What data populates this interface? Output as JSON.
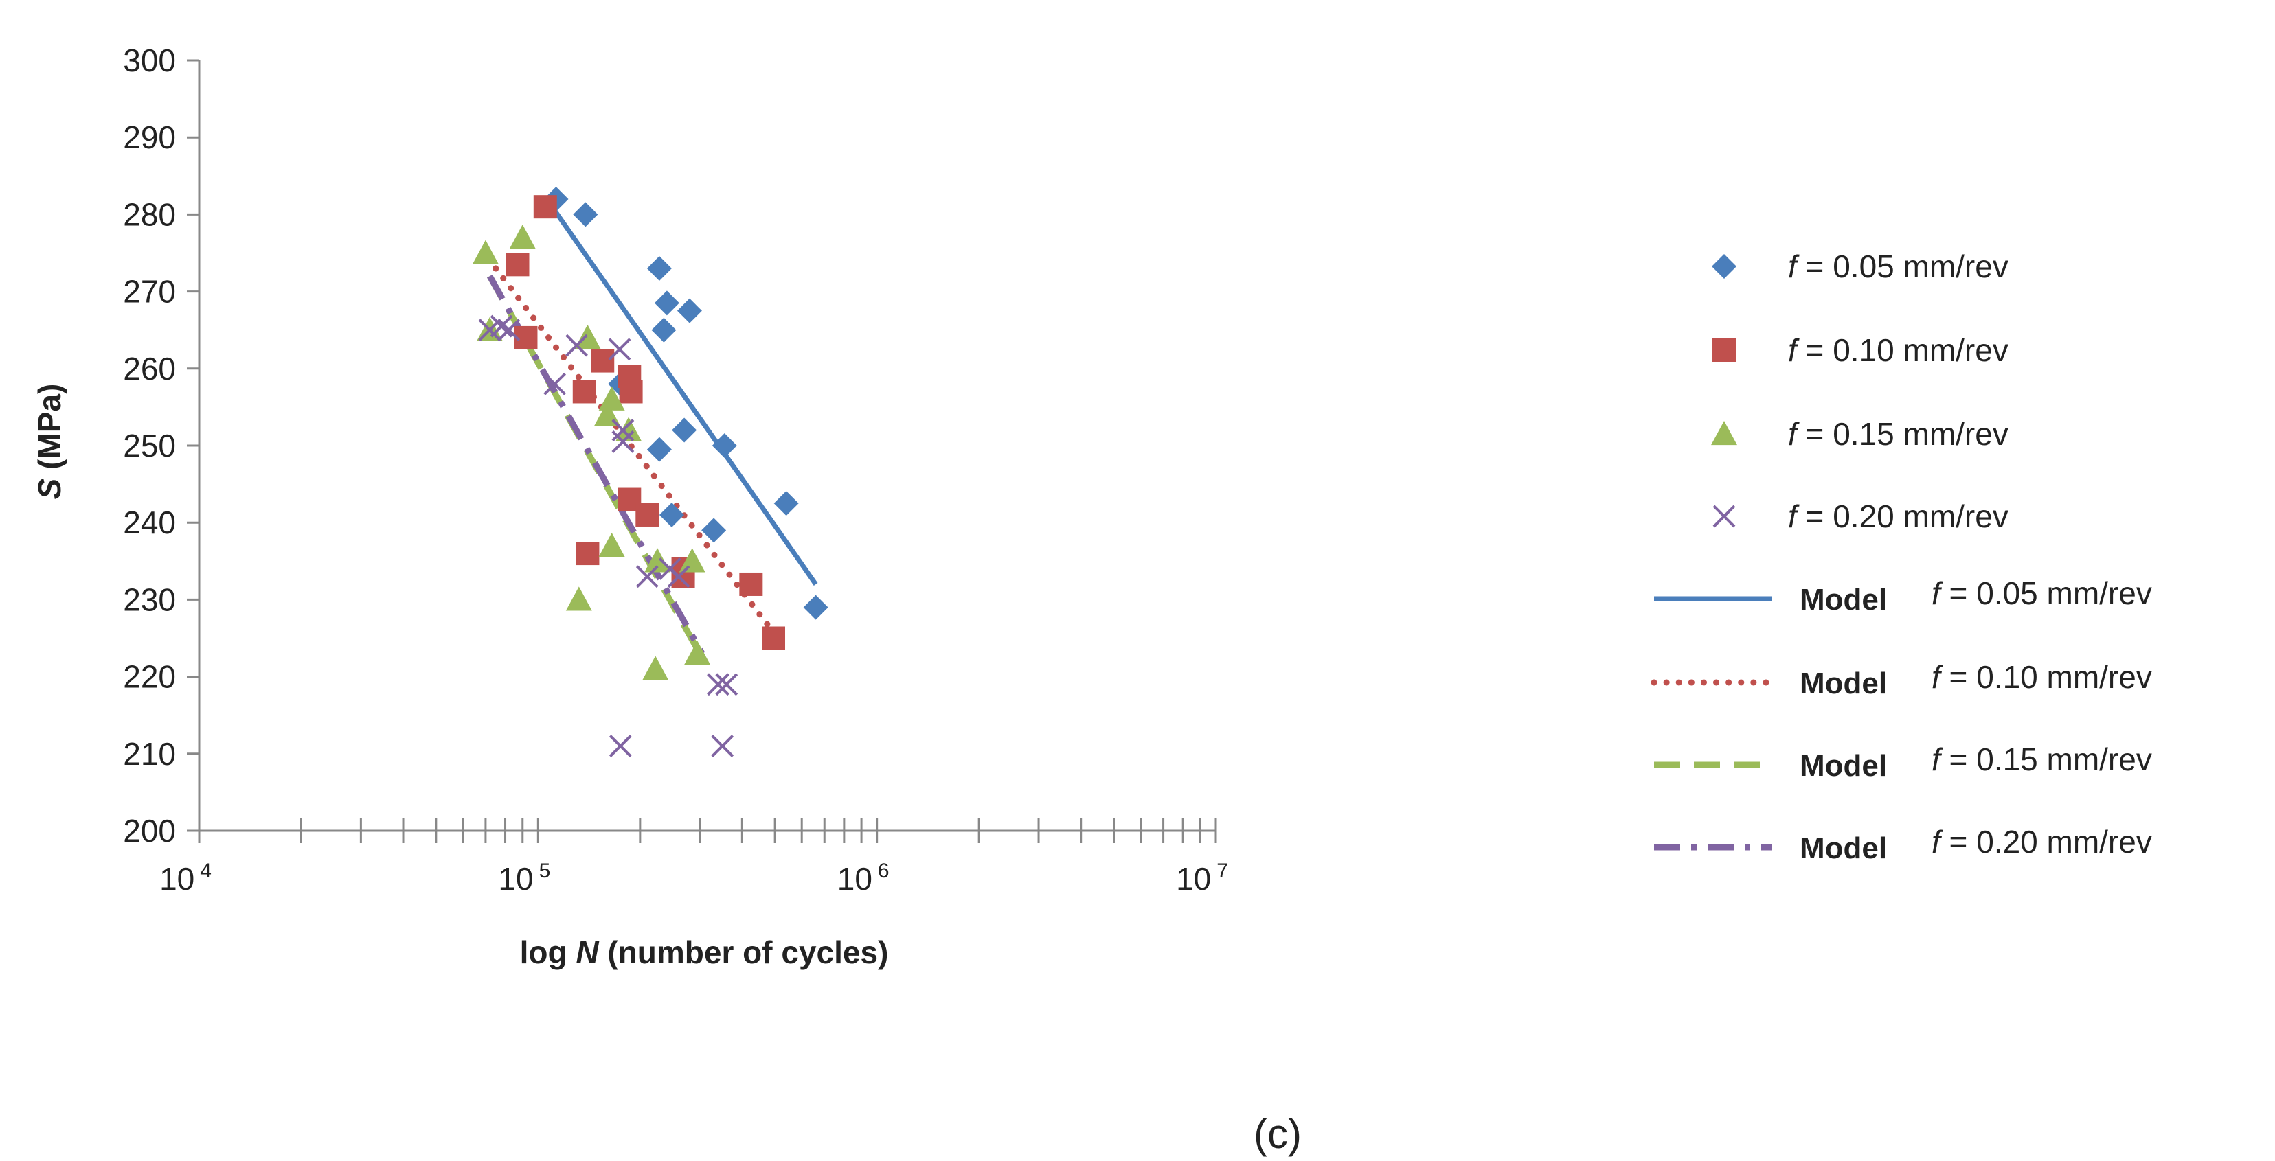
{
  "chart_data": {
    "type": "scatter",
    "panel_label": "(c)",
    "xlabel_prefix": "log ",
    "xlabel_var": "N",
    "xlabel_suffix": " (number of cycles)",
    "ylabel_var": "S",
    "ylabel_suffix": " (MPa)",
    "x_scale": "log",
    "xlim": [
      10000,
      10000000
    ],
    "ylim": [
      200,
      300
    ],
    "x_ticks": [
      {
        "base": "10",
        "exp": "4",
        "value": 10000
      },
      {
        "base": "10",
        "exp": "5",
        "value": 100000
      },
      {
        "base": "10",
        "exp": "6",
        "value": 1000000
      },
      {
        "base": "10",
        "exp": "7",
        "value": 10000000
      }
    ],
    "y_ticks": [
      "200",
      "210",
      "220",
      "230",
      "240",
      "250",
      "260",
      "270",
      "280",
      "290",
      "300"
    ],
    "y_tick_values": [
      200,
      210,
      220,
      230,
      240,
      250,
      260,
      270,
      280,
      290,
      300
    ],
    "legend_position": "right",
    "series": [
      {
        "name": "f = 0.05 mm/rev",
        "legend_var": "f",
        "legend_rest": " = 0.05 mm/rev",
        "marker": "diamond",
        "color": "#4a7ebb",
        "points": [
          [
            113000,
            282
          ],
          [
            138000,
            280
          ],
          [
            228000,
            273
          ],
          [
            240000,
            268.5
          ],
          [
            280000,
            267.5
          ],
          [
            235000,
            265
          ],
          [
            175000,
            258
          ],
          [
            270000,
            252
          ],
          [
            228000,
            249.5
          ],
          [
            355000,
            250
          ],
          [
            540000,
            242.5
          ],
          [
            248000,
            241
          ],
          [
            330000,
            239
          ],
          [
            660000,
            229
          ]
        ]
      },
      {
        "name": "f = 0.10 mm/rev",
        "legend_var": "f",
        "legend_rest": " = 0.10 mm/rev",
        "marker": "square",
        "color": "#c0504d",
        "points": [
          [
            105000,
            281
          ],
          [
            87000,
            273.5
          ],
          [
            92000,
            264
          ],
          [
            155000,
            261
          ],
          [
            186000,
            259
          ],
          [
            137000,
            257
          ],
          [
            188000,
            257
          ],
          [
            186000,
            243
          ],
          [
            210000,
            241
          ],
          [
            140000,
            236
          ],
          [
            268000,
            234
          ],
          [
            268000,
            233
          ],
          [
            425000,
            232
          ],
          [
            495000,
            225
          ]
        ]
      },
      {
        "name": "f = 0.15 mm/rev",
        "legend_var": "f",
        "legend_rest": " = 0.15 mm/rev",
        "marker": "triangle",
        "color": "#9bbb59",
        "points": [
          [
            70000,
            275
          ],
          [
            90000,
            277
          ],
          [
            72000,
            265
          ],
          [
            140000,
            264
          ],
          [
            165000,
            256
          ],
          [
            160000,
            254
          ],
          [
            185000,
            252
          ],
          [
            165000,
            237
          ],
          [
            225000,
            235
          ],
          [
            132000,
            230
          ],
          [
            285000,
            235
          ],
          [
            222000,
            221
          ],
          [
            295000,
            223
          ]
        ]
      },
      {
        "name": "f = 0.20 mm/rev",
        "legend_var": "f",
        "legend_rest": " = 0.20 mm/rev",
        "marker": "x",
        "color": "#8064a2",
        "points": [
          [
            72000,
            265
          ],
          [
            78000,
            265.5
          ],
          [
            82000,
            265
          ],
          [
            130000,
            263
          ],
          [
            174000,
            262.5
          ],
          [
            112000,
            258
          ],
          [
            178000,
            252
          ],
          [
            178000,
            250.5
          ],
          [
            210000,
            233
          ],
          [
            245000,
            234
          ],
          [
            260000,
            233
          ],
          [
            340000,
            219
          ],
          [
            360000,
            219
          ],
          [
            175000,
            211
          ],
          [
            350000,
            211
          ]
        ]
      }
    ],
    "models": [
      {
        "name": "Model f = 0.05 mm/rev",
        "legend_bold": "Model",
        "legend_var": "f",
        "legend_rest": " = 0.05 mm/rev",
        "style": "solid",
        "color": "#4a7ebb",
        "x": [
          110000,
          660000
        ],
        "y": [
          281,
          232
        ]
      },
      {
        "name": "Model f = 0.10 mm/rev",
        "legend_bold": "Model",
        "legend_var": "f",
        "legend_rest": " = 0.10 mm/rev",
        "style": "dotted",
        "color": "#c0504d",
        "x": [
          75000,
          490000
        ],
        "y": [
          273,
          226
        ]
      },
      {
        "name": "Model f = 0.15 mm/rev",
        "legend_bold": "Model",
        "legend_var": "f",
        "legend_rest": " = 0.15 mm/rev",
        "style": "dashed",
        "color": "#9bbb59",
        "x": [
          72000,
          300000
        ],
        "y": [
          272,
          223
        ]
      },
      {
        "name": "Model f = 0.20 mm/rev",
        "legend_bold": "Model",
        "legend_var": "f",
        "legend_rest": " = 0.20 mm/rev",
        "style": "dashdot",
        "color": "#8064a2",
        "x": [
          72000,
          305000
        ],
        "y": [
          272,
          223
        ]
      }
    ]
  }
}
